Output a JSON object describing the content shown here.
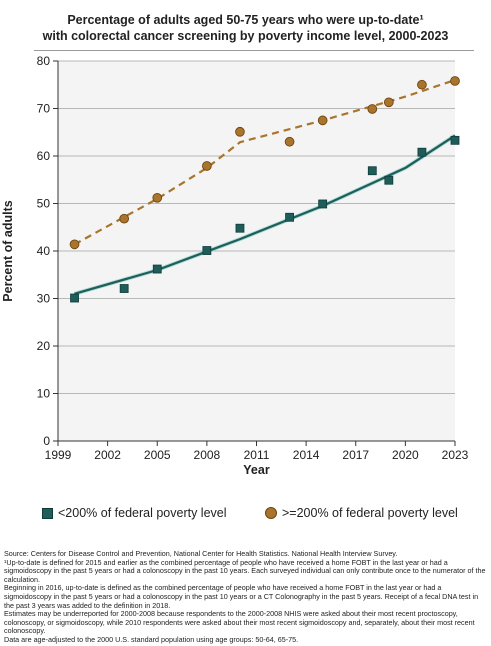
{
  "chart_data": {
    "type": "scatter",
    "title": [
      "Percentage of adults aged 50-75 years who were up-to-date¹",
      "with colorectal cancer screening by poverty income level, 2000-2023"
    ],
    "xlabel": "Year",
    "ylabel": "Percent of adults",
    "xlim": [
      1999,
      2023
    ],
    "ylim": [
      0,
      80
    ],
    "xticks": [
      "1999",
      "2002",
      "2005",
      "2008",
      "2011",
      "2014",
      "2017",
      "2020",
      "2023"
    ],
    "yticks": [
      "0",
      "10",
      "20",
      "30",
      "40",
      "50",
      "60",
      "70",
      "80"
    ],
    "grid": true,
    "legend_position": "bottom",
    "series": [
      {
        "name": "<200% of federal poverty level",
        "color": "#1e5d5a",
        "marker": "square",
        "trend": "solid",
        "x": [
          2000,
          2003,
          2005,
          2008,
          2010,
          2013,
          2015,
          2018,
          2019,
          2021,
          2023
        ],
        "y": [
          30.1,
          32.1,
          36.2,
          40.1,
          44.8,
          47.1,
          49.9,
          56.9,
          54.9,
          60.8,
          63.3
        ],
        "trend_line": [
          [
            2000,
            31
          ],
          [
            2005,
            36
          ],
          [
            2010,
            42.5
          ],
          [
            2015,
            49.5
          ],
          [
            2020,
            57.5
          ],
          [
            2023,
            64.3
          ]
        ]
      },
      {
        "name": ">=200% of federal poverty level",
        "color": "#a9742b",
        "marker": "circle",
        "trend": "dashed",
        "x": [
          2000,
          2003,
          2005,
          2008,
          2010,
          2013,
          2015,
          2018,
          2019,
          2021,
          2023
        ],
        "y": [
          41.4,
          46.8,
          51.2,
          57.9,
          65.1,
          63,
          67.5,
          69.9,
          71.3,
          75,
          75.8
        ],
        "trend_line": [
          [
            2000,
            41.4
          ],
          [
            2005,
            51
          ],
          [
            2008,
            57.5
          ],
          [
            2010,
            62.9
          ],
          [
            2015,
            67.5
          ],
          [
            2020,
            72.5
          ],
          [
            2023,
            76
          ]
        ]
      }
    ]
  },
  "legend": {
    "low": "<200% of federal poverty level",
    "high": ">=200% of federal poverty level"
  },
  "notes": [
    "Source: Centers for Disease Control and Prevention, National Center for Health Statistics. National Health Interview Survey.",
    "¹Up-to-date is defined for 2015 and earlier as the combined percentage of people who have received a home FOBT in the last year or had a sigmoidoscopy in the past 5 years or had a colonoscopy in the past 10 years. Each surveyed individual can only contribute once to the numerator of the calculation.",
    "Beginning in 2016, up-to-date is defined as the combined percentage of people who have received a home FOBT in the last year or had a sigmoidoscopy in the past 5 years or had a colonoscopy in the past 10 years or a CT Colonography in the past 5 years. Receipt of a fecal DNA test in the past 3 years was added to the definition in 2018.",
    "Estimates may be underreported for 2000-2008 because respondents to the 2000-2008 NHIS were asked about their most recent proctoscopy, colonoscopy, or sigmoidoscopy, while 2010 respondents were asked about their most recent sigmoidoscopy and, separately, about their most recent colonoscopy.",
    "Data are age-adjusted to the 2000 U.S. standard population using age groups: 50-64, 65-75."
  ]
}
